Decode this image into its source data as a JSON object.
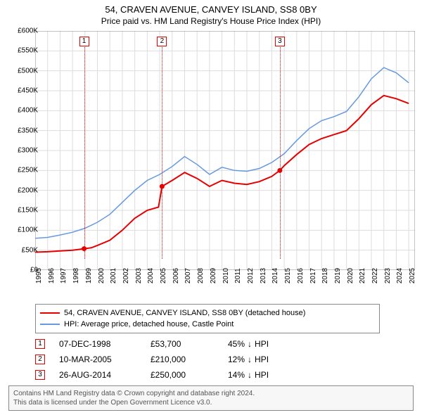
{
  "title": "54, CRAVEN AVENUE, CANVEY ISLAND, SS8 0BY",
  "subtitle": "Price paid vs. HM Land Registry's House Price Index (HPI)",
  "chart": {
    "type": "line",
    "background_color": "#ffffff",
    "grid_color": "#dddddd",
    "axis_color": "#888888",
    "ylim": [
      0,
      600000
    ],
    "ytick_step": 50000,
    "yticks": [
      "£0",
      "£50K",
      "£100K",
      "£150K",
      "£200K",
      "£250K",
      "£300K",
      "£350K",
      "£400K",
      "£450K",
      "£500K",
      "£550K",
      "£600K"
    ],
    "xlim": [
      1995,
      2025.5
    ],
    "xtick_step": 1,
    "xticks": [
      "1995",
      "1996",
      "1997",
      "1998",
      "1999",
      "2000",
      "2001",
      "2002",
      "2003",
      "2004",
      "2005",
      "2006",
      "2007",
      "2008",
      "2009",
      "2010",
      "2011",
      "2012",
      "2013",
      "2014",
      "2015",
      "2016",
      "2017",
      "2018",
      "2019",
      "2020",
      "2021",
      "2022",
      "2023",
      "2024",
      "2025"
    ],
    "label_fontsize": 10,
    "series": [
      {
        "name": "price_paid",
        "label": "54, CRAVEN AVENUE, CANVEY ISLAND, SS8 0BY (detached house)",
        "color": "#e60000",
        "line_width": 2,
        "data": [
          [
            1995,
            45000
          ],
          [
            1996,
            46000
          ],
          [
            1997,
            48000
          ],
          [
            1998,
            50000
          ],
          [
            1998.93,
            53700
          ],
          [
            1999.5,
            56000
          ],
          [
            2000,
            62000
          ],
          [
            2001,
            75000
          ],
          [
            2002,
            100000
          ],
          [
            2003,
            130000
          ],
          [
            2004,
            150000
          ],
          [
            2004.9,
            158000
          ],
          [
            2005.19,
            210000
          ],
          [
            2006,
            225000
          ],
          [
            2007,
            245000
          ],
          [
            2008,
            230000
          ],
          [
            2009,
            210000
          ],
          [
            2010,
            225000
          ],
          [
            2011,
            218000
          ],
          [
            2012,
            215000
          ],
          [
            2013,
            222000
          ],
          [
            2014,
            235000
          ],
          [
            2014.65,
            250000
          ],
          [
            2015,
            262000
          ],
          [
            2016,
            290000
          ],
          [
            2017,
            315000
          ],
          [
            2018,
            330000
          ],
          [
            2019,
            340000
          ],
          [
            2020,
            350000
          ],
          [
            2021,
            380000
          ],
          [
            2022,
            415000
          ],
          [
            2023,
            438000
          ],
          [
            2024,
            430000
          ],
          [
            2025,
            418000
          ]
        ]
      },
      {
        "name": "hpi",
        "label": "HPI: Average price, detached house, Castle Point",
        "color": "#6699dd",
        "line_width": 1.5,
        "data": [
          [
            1995,
            80000
          ],
          [
            1996,
            82000
          ],
          [
            1997,
            88000
          ],
          [
            1998,
            95000
          ],
          [
            1999,
            105000
          ],
          [
            2000,
            120000
          ],
          [
            2001,
            140000
          ],
          [
            2002,
            170000
          ],
          [
            2003,
            200000
          ],
          [
            2004,
            225000
          ],
          [
            2005,
            240000
          ],
          [
            2006,
            260000
          ],
          [
            2007,
            285000
          ],
          [
            2008,
            265000
          ],
          [
            2009,
            240000
          ],
          [
            2010,
            258000
          ],
          [
            2011,
            250000
          ],
          [
            2012,
            248000
          ],
          [
            2013,
            255000
          ],
          [
            2014,
            270000
          ],
          [
            2015,
            292000
          ],
          [
            2016,
            325000
          ],
          [
            2017,
            355000
          ],
          [
            2018,
            375000
          ],
          [
            2019,
            385000
          ],
          [
            2020,
            398000
          ],
          [
            2021,
            435000
          ],
          [
            2022,
            480000
          ],
          [
            2023,
            508000
          ],
          [
            2024,
            495000
          ],
          [
            2025,
            470000
          ]
        ]
      }
    ],
    "markers": [
      {
        "n": "1",
        "x": 1998.93,
        "color": "#e60000"
      },
      {
        "n": "2",
        "x": 2005.19,
        "color": "#e60000"
      },
      {
        "n": "3",
        "x": 2014.65,
        "color": "#e60000"
      }
    ]
  },
  "legend": {
    "items": [
      {
        "color": "#e60000",
        "label": "54, CRAVEN AVENUE, CANVEY ISLAND, SS8 0BY (detached house)"
      },
      {
        "color": "#6699dd",
        "label": "HPI: Average price, detached house, Castle Point"
      }
    ]
  },
  "events": [
    {
      "n": "1",
      "color": "#e60000",
      "date": "07-DEC-1998",
      "price": "£53,700",
      "diff_pct": "45%",
      "diff_dir": "↓",
      "diff_ref": "HPI"
    },
    {
      "n": "2",
      "color": "#e60000",
      "date": "10-MAR-2005",
      "price": "£210,000",
      "diff_pct": "12%",
      "diff_dir": "↓",
      "diff_ref": "HPI"
    },
    {
      "n": "3",
      "color": "#e60000",
      "date": "26-AUG-2014",
      "price": "£250,000",
      "diff_pct": "14%",
      "diff_dir": "↓",
      "diff_ref": "HPI"
    }
  ],
  "footer": {
    "line1": "Contains HM Land Registry data © Crown copyright and database right 2024.",
    "line2": "This data is licensed under the Open Government Licence v3.0."
  }
}
